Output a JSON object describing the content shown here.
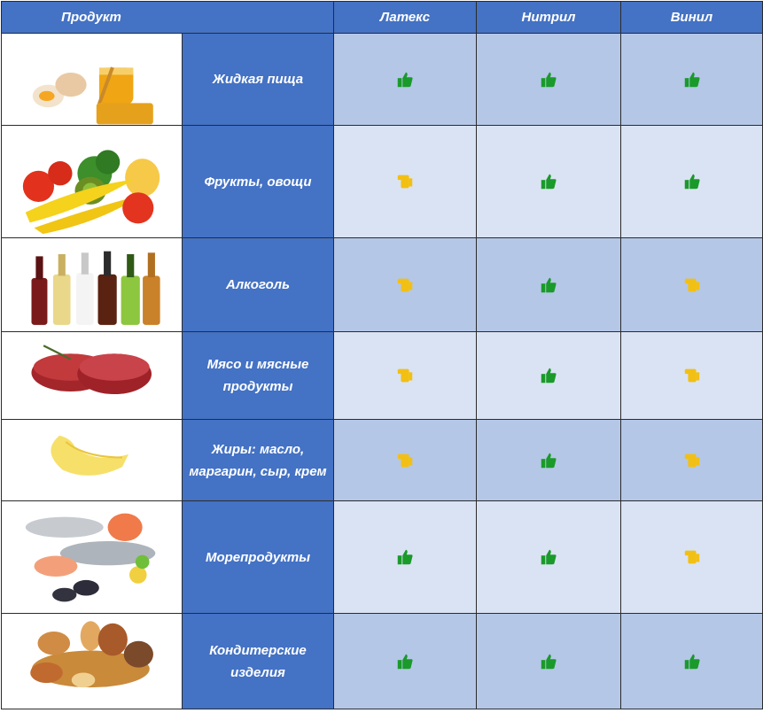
{
  "header": {
    "product": "Продукт",
    "materials": [
      "Латекс",
      "Нитрил",
      "Винил"
    ]
  },
  "legend": {
    "good_icon": "thumbs-up-green",
    "cond_icon": "hand-point-yellow",
    "good_color": "#1a9a2a",
    "cond_color": "#f2c014"
  },
  "rows": [
    {
      "name": "Жидкая пища",
      "image": "eggs-and-honey",
      "ratings": [
        "good",
        "good",
        "good"
      ]
    },
    {
      "name": "Фрукты, овощи",
      "image": "fruits-vegetables",
      "ratings": [
        "cond",
        "good",
        "good"
      ]
    },
    {
      "name": "Алкоголь",
      "image": "bottles",
      "ratings": [
        "cond",
        "good",
        "cond"
      ]
    },
    {
      "name": "Мясо и мясные продукты",
      "image": "raw-meat",
      "ratings": [
        "cond",
        "good",
        "cond"
      ]
    },
    {
      "name": "Жиры: масло, маргарин, сыр, крем",
      "image": "butter-curl",
      "ratings": [
        "cond",
        "good",
        "cond"
      ]
    },
    {
      "name": "Морепродукты",
      "image": "seafood",
      "ratings": [
        "good",
        "good",
        "cond"
      ]
    },
    {
      "name": "Кондитерские изделия",
      "image": "pastries",
      "ratings": [
        "good",
        "good",
        "good"
      ]
    }
  ]
}
